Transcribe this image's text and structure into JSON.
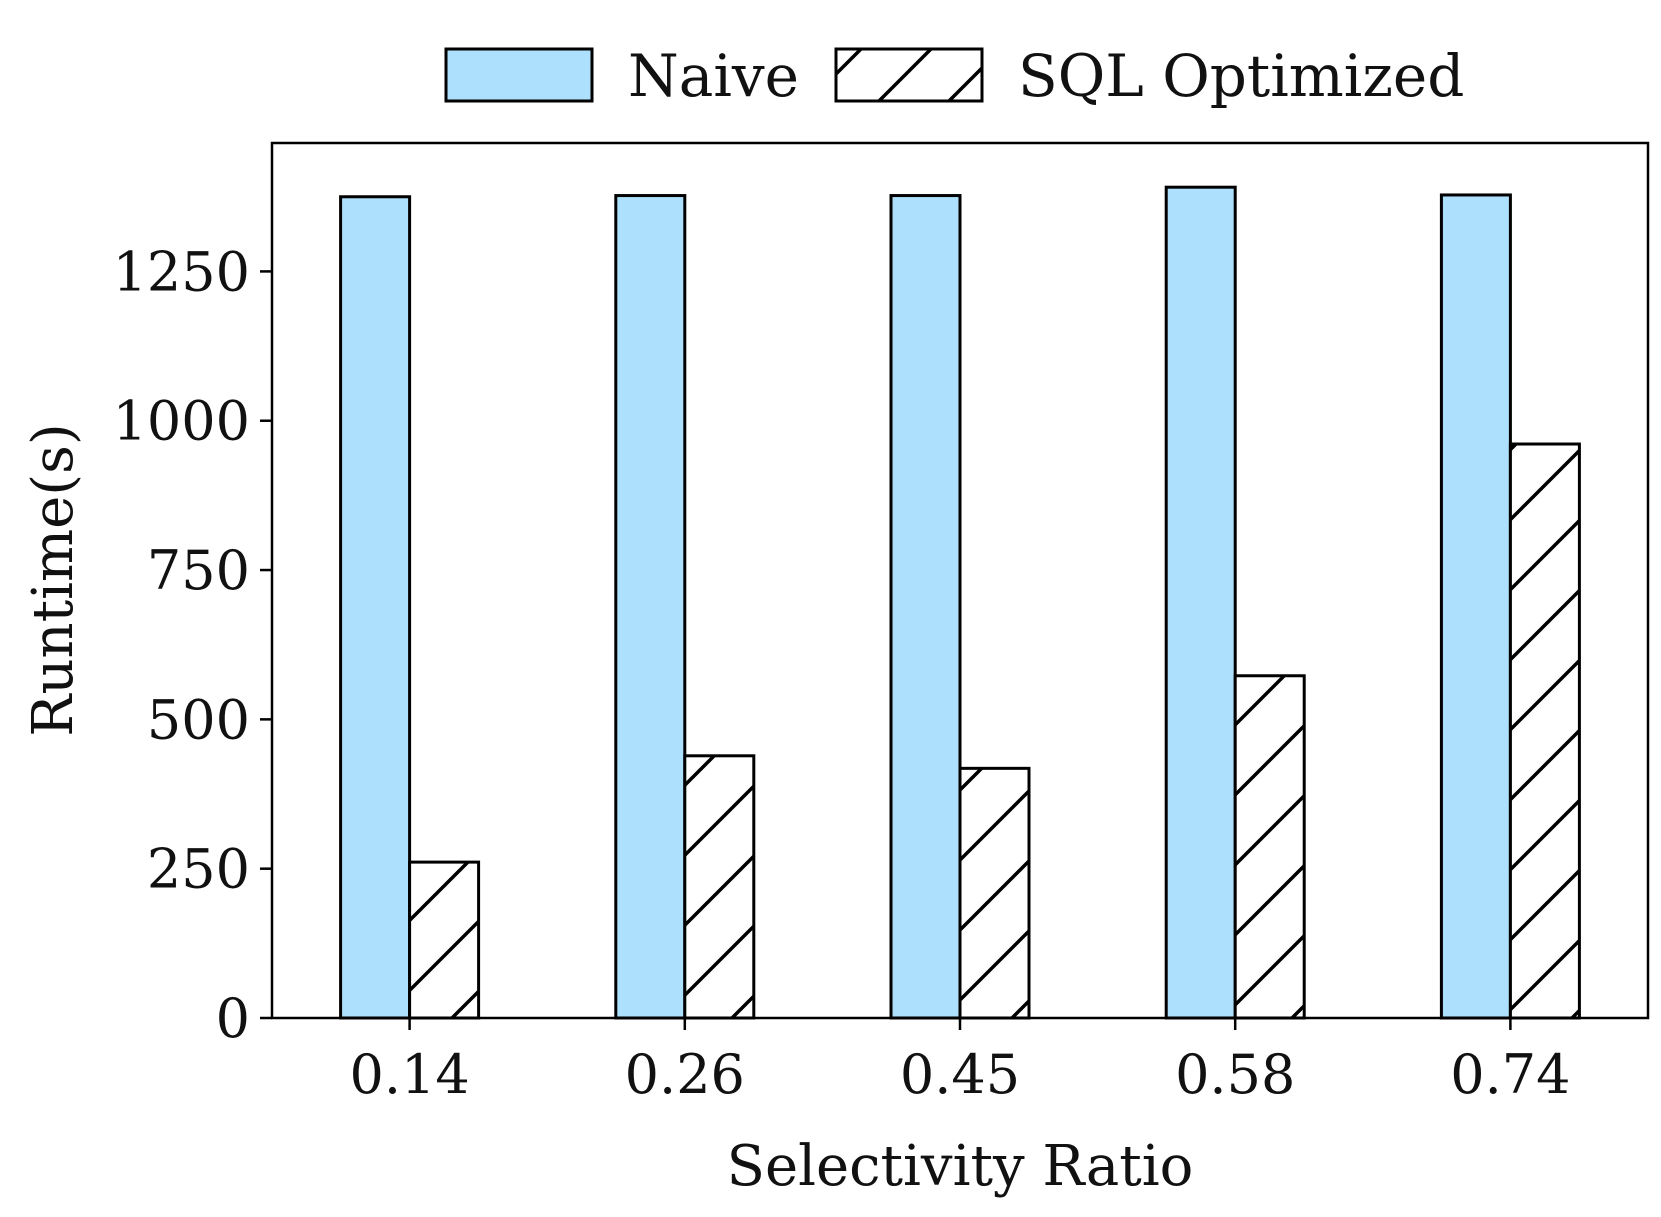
{
  "chart_data": {
    "type": "bar",
    "title": "",
    "xlabel": "Selectivity Ratio",
    "ylabel": "Runtime(s)",
    "categories": [
      "0.14",
      "0.26",
      "0.45",
      "0.58",
      "0.74"
    ],
    "ylim": [
      0,
      1465
    ],
    "yticks": [
      0,
      250,
      500,
      750,
      1000,
      1250
    ],
    "grid": false,
    "legend_position": "top-center",
    "series": [
      {
        "name": "Naive",
        "values": [
          1375,
          1377,
          1377,
          1391,
          1378
        ],
        "color": "#ade0fc",
        "pattern": "solid"
      },
      {
        "name": "SQL Optimized",
        "values": [
          261,
          439,
          418,
          573,
          961
        ],
        "color": "#ffffff",
        "pattern": "diagonal-hatch"
      }
    ]
  }
}
